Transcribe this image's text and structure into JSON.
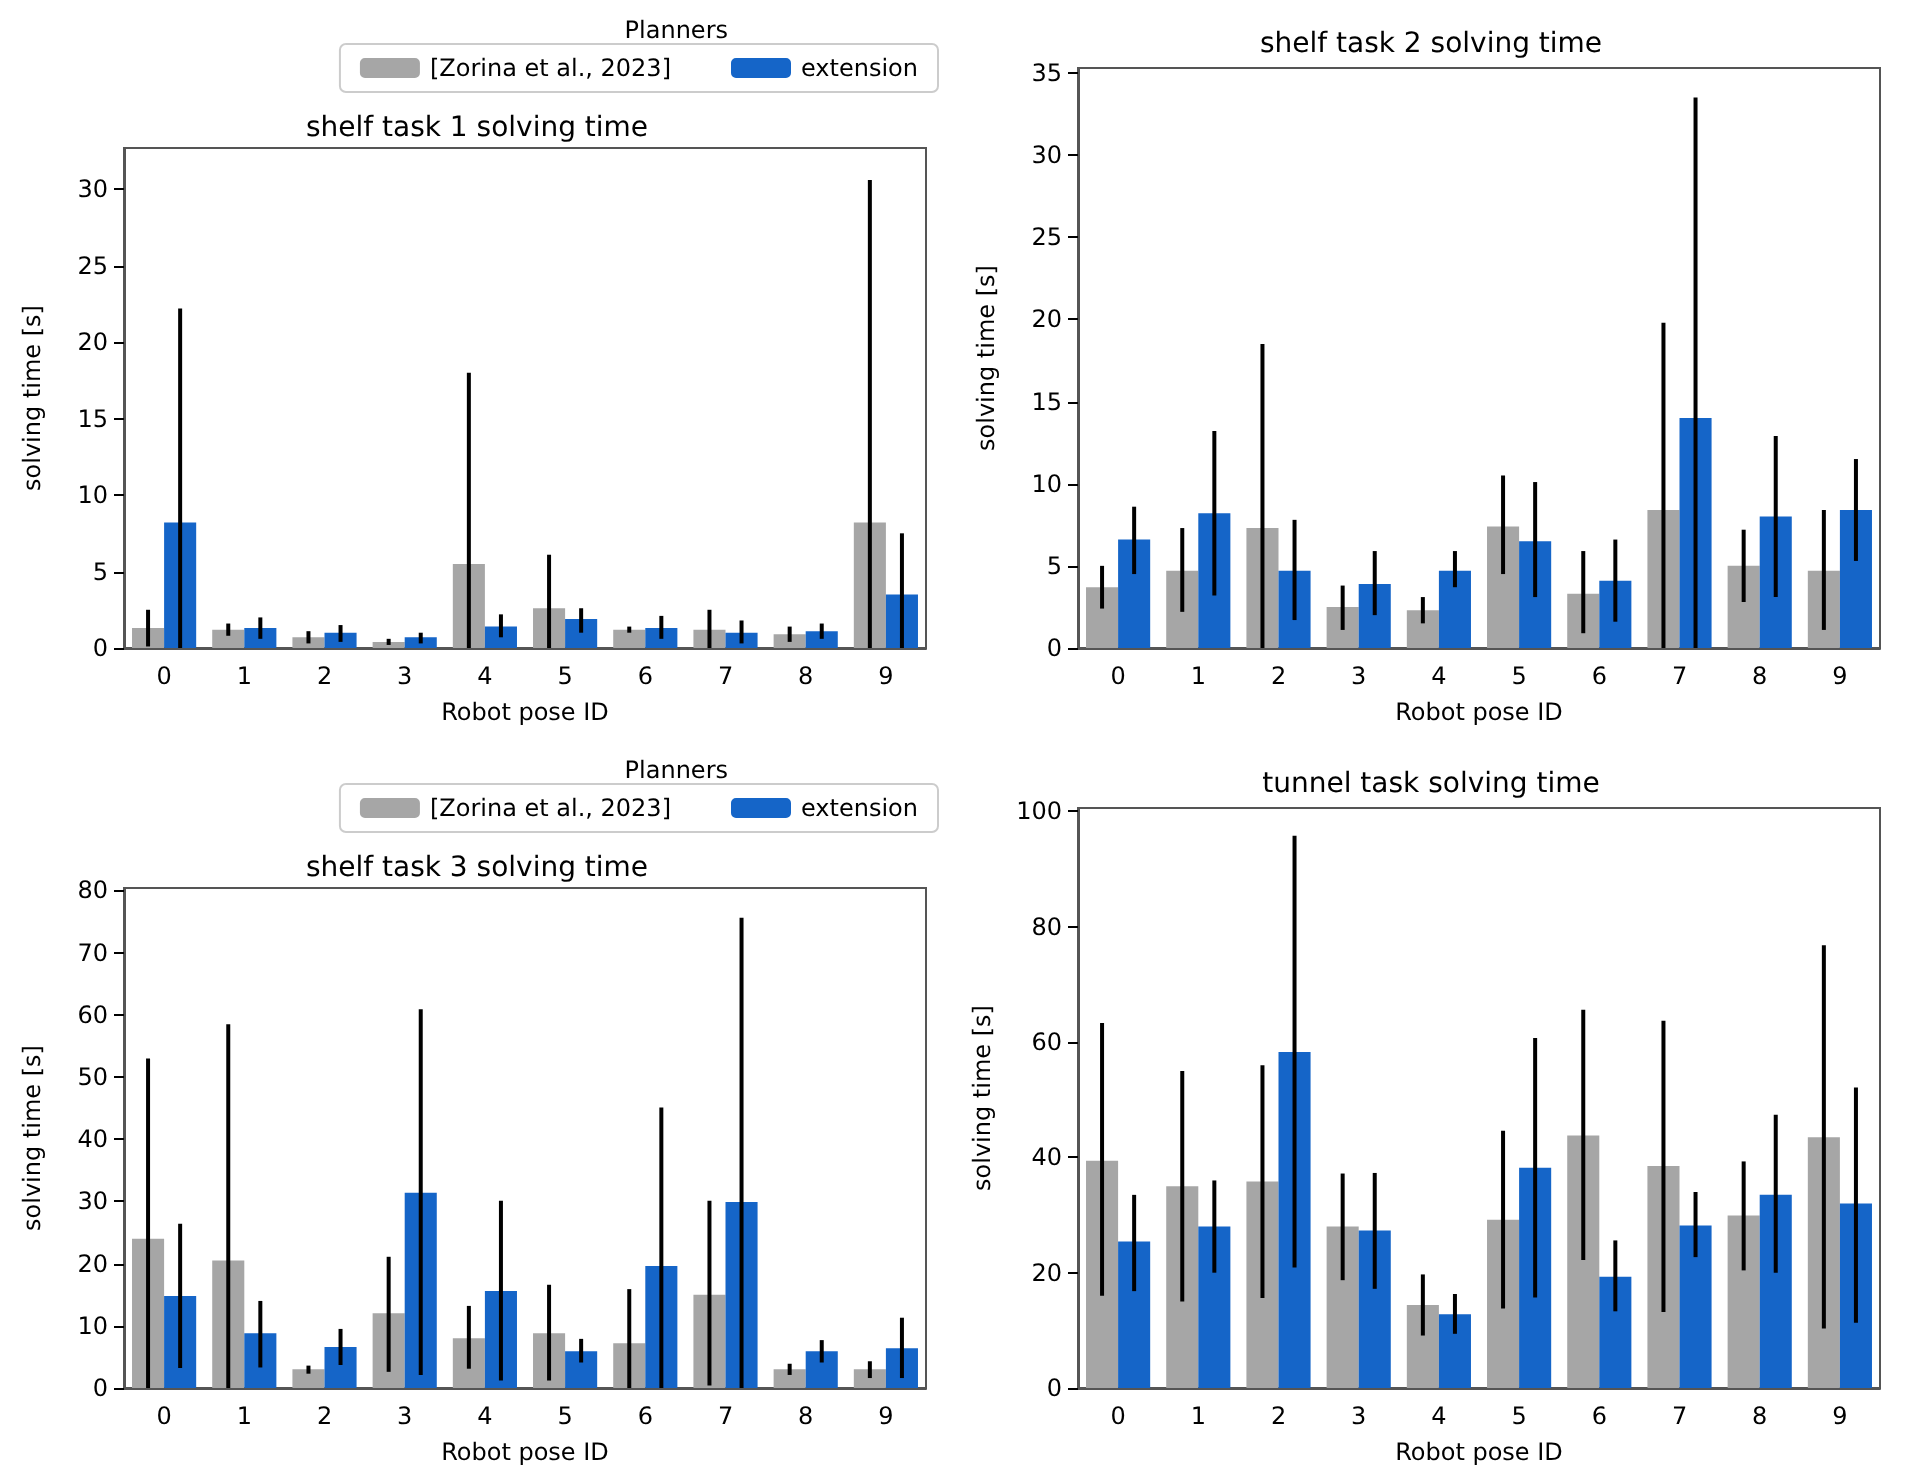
{
  "chart_data": [
    {
      "type": "bar",
      "title": "shelf task 1 solving time",
      "xlabel": "Robot pose ID",
      "ylabel": "solving time [s]",
      "legend_title": "Planners",
      "legend": "top right",
      "categories": [
        "0",
        "1",
        "2",
        "3",
        "4",
        "5",
        "6",
        "7",
        "8",
        "9"
      ],
      "ylim": [
        0,
        32.7
      ],
      "yticks": [
        0,
        5,
        10,
        15,
        20,
        25,
        30
      ],
      "series": [
        {
          "name": "[Zorina et al., 2023]",
          "color": "#a6a6a6",
          "values": [
            1.3,
            1.2,
            0.7,
            0.4,
            5.5,
            2.6,
            1.2,
            1.2,
            0.9,
            8.2
          ],
          "errors": [
            [
              0.1,
              2.5
            ],
            [
              0.8,
              1.6
            ],
            [
              0.3,
              1.1
            ],
            [
              0.2,
              0.6
            ],
            [
              0,
              18
            ],
            [
              0,
              6.1
            ],
            [
              1.0,
              1.4
            ],
            [
              0,
              2.5
            ],
            [
              0.4,
              1.4
            ],
            [
              0,
              30.6
            ]
          ]
        },
        {
          "name": "extension",
          "color": "#1565c8",
          "values": [
            8.2,
            1.3,
            1.0,
            0.7,
            1.4,
            1.9,
            1.3,
            1.0,
            1.1,
            3.5
          ],
          "errors": [
            [
              0,
              22.2
            ],
            [
              0.6,
              2.0
            ],
            [
              0.4,
              1.5
            ],
            [
              0.3,
              1.0
            ],
            [
              0.7,
              2.2
            ],
            [
              1.0,
              2.6
            ],
            [
              0.6,
              2.1
            ],
            [
              0.3,
              1.8
            ],
            [
              0.6,
              1.6
            ],
            [
              0,
              7.5
            ]
          ]
        }
      ]
    },
    {
      "type": "bar",
      "title": "shelf task 2 solving time",
      "xlabel": "Robot pose ID",
      "ylabel": "solving time [s]",
      "categories": [
        "0",
        "1",
        "2",
        "3",
        "4",
        "5",
        "6",
        "7",
        "8",
        "9"
      ],
      "ylim": [
        0,
        35.3
      ],
      "yticks": [
        0,
        5,
        10,
        15,
        20,
        25,
        30,
        35
      ],
      "series": [
        {
          "color": "#a6a6a6",
          "values": [
            3.7,
            4.7,
            7.3,
            2.5,
            2.3,
            7.4,
            3.3,
            8.4,
            5.0,
            4.7
          ],
          "errors": [
            [
              2.4,
              5.0
            ],
            [
              2.2,
              7.3
            ],
            [
              0,
              18.5
            ],
            [
              1.1,
              3.8
            ],
            [
              1.5,
              3.1
            ],
            [
              4.5,
              10.5
            ],
            [
              0.9,
              5.9
            ],
            [
              0,
              19.8
            ],
            [
              2.8,
              7.2
            ],
            [
              1.1,
              8.4
            ]
          ]
        },
        {
          "color": "#1565c8",
          "values": [
            6.6,
            8.2,
            4.7,
            3.9,
            4.7,
            6.5,
            4.1,
            14.0,
            8.0,
            8.4
          ],
          "errors": [
            [
              4.5,
              8.6
            ],
            [
              3.2,
              13.2
            ],
            [
              1.7,
              7.8
            ],
            [
              2.0,
              5.9
            ],
            [
              3.7,
              5.9
            ],
            [
              3.1,
              10.1
            ],
            [
              1.6,
              6.6
            ],
            [
              0,
              33.5
            ],
            [
              3.1,
              12.9
            ],
            [
              5.3,
              11.5
            ]
          ]
        }
      ]
    },
    {
      "type": "bar",
      "title": "shelf task 3 solving time",
      "xlabel": "Robot pose ID",
      "ylabel": "solving time [s]",
      "legend_title": "Planners",
      "legend": "top right",
      "categories": [
        "0",
        "1",
        "2",
        "3",
        "4",
        "5",
        "6",
        "7",
        "8",
        "9"
      ],
      "ylim": [
        0,
        80.4
      ],
      "yticks": [
        0,
        10,
        20,
        30,
        40,
        50,
        60,
        70,
        80
      ],
      "series": [
        {
          "name": "[Zorina et al., 2023]",
          "color": "#a6a6a6",
          "values": [
            24,
            20.5,
            3.0,
            12.0,
            8.0,
            8.8,
            7.2,
            15.0,
            3.0,
            3.0
          ],
          "errors": [
            [
              0,
              53
            ],
            [
              0,
              58.5
            ],
            [
              2.3,
              3.6
            ],
            [
              2.6,
              21.1
            ],
            [
              3.1,
              13.2
            ],
            [
              1.2,
              16.6
            ],
            [
              0,
              15.9
            ],
            [
              0.4,
              30.1
            ],
            [
              2.1,
              3.9
            ],
            [
              1.6,
              4.3
            ]
          ]
        },
        {
          "name": "extension",
          "color": "#1565c8",
          "values": [
            14.8,
            8.8,
            6.6,
            31.4,
            15.6,
            5.9,
            19.6,
            29.9,
            5.9,
            6.4
          ],
          "errors": [
            [
              3.2,
              26.4
            ],
            [
              3.3,
              14.0
            ],
            [
              3.7,
              9.5
            ],
            [
              2.1,
              60.9
            ],
            [
              1.2,
              30.1
            ],
            [
              4.1,
              7.9
            ],
            [
              0,
              45.1
            ],
            [
              0,
              75.6
            ],
            [
              4.1,
              7.7
            ],
            [
              1.6,
              11.3
            ]
          ]
        }
      ]
    },
    {
      "type": "bar",
      "title": "tunnel task solving time",
      "xlabel": "Robot pose ID",
      "ylabel": "solving time [s]",
      "categories": [
        "0",
        "1",
        "2",
        "3",
        "4",
        "5",
        "6",
        "7",
        "8",
        "9"
      ],
      "ylim": [
        0,
        100.6
      ],
      "yticks": [
        0,
        20,
        40,
        60,
        80,
        100
      ],
      "series": [
        {
          "color": "#a6a6a6",
          "values": [
            39.4,
            35,
            35.8,
            28,
            14.4,
            29.2,
            43.8,
            38.5,
            29.9,
            43.5
          ],
          "errors": [
            [
              16,
              63.3
            ],
            [
              15,
              55
            ],
            [
              15.6,
              56
            ],
            [
              18.7,
              37.2
            ],
            [
              9.1,
              19.7
            ],
            [
              13.8,
              44.6
            ],
            [
              22.2,
              65.6
            ],
            [
              13.2,
              63.7
            ],
            [
              20.4,
              39.3
            ],
            [
              10.3,
              76.8
            ]
          ]
        },
        {
          "color": "#1565c8",
          "values": [
            25.4,
            28,
            58.3,
            27.3,
            12.8,
            38.2,
            19.3,
            28.2,
            33.5,
            32
          ],
          "errors": [
            [
              16.8,
              33.5
            ],
            [
              20,
              36
            ],
            [
              20.9,
              95.8
            ],
            [
              17.2,
              37.3
            ],
            [
              9.4,
              16.3
            ],
            [
              15.7,
              60.7
            ],
            [
              13.3,
              25.6
            ],
            [
              22.7,
              34
            ],
            [
              20,
              47.4
            ],
            [
              11.3,
              52.1
            ]
          ]
        }
      ]
    }
  ]
}
